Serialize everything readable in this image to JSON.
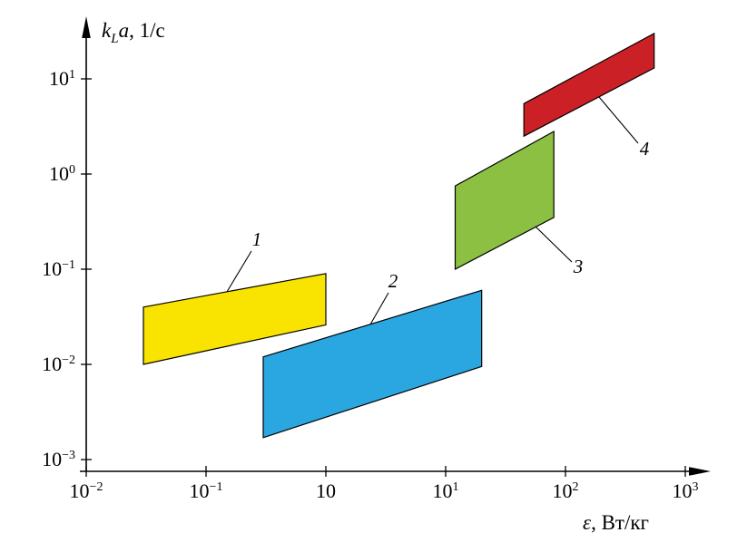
{
  "figure": {
    "y_axis_title": {
      "k": "k",
      "sub": "L",
      "a": "a",
      "rest": ", 1/с"
    },
    "x_axis_title": {
      "symbol": "ε",
      "rest": ", Вт/кг"
    }
  },
  "chart_data": {
    "type": "area",
    "title": "",
    "xlabel": "ε, Вт/кг",
    "ylabel": "kLa, 1/с",
    "grid": false,
    "legend": false,
    "x_axis": {
      "scale": "log",
      "log_min": -2,
      "log_max": 3,
      "min": 0.01,
      "max": 1000,
      "ticks": [
        {
          "value": 0.01,
          "base": "10",
          "exp": "−2"
        },
        {
          "value": 0.1,
          "base": "10",
          "exp": "−1"
        },
        {
          "value": 1,
          "base": "10",
          "exp": ""
        },
        {
          "value": 10,
          "base": "10",
          "exp": "1"
        },
        {
          "value": 100,
          "base": "10",
          "exp": "2"
        },
        {
          "value": 1000,
          "base": "10",
          "exp": "3"
        }
      ]
    },
    "y_axis": {
      "scale": "log",
      "log_min": -3,
      "log_max": 1,
      "min": 0.001,
      "max": 10,
      "ticks": [
        {
          "value": 10,
          "base": "10",
          "exp": "1"
        },
        {
          "value": 1,
          "base": "10",
          "exp": "0"
        },
        {
          "value": 0.1,
          "base": "10",
          "exp": "−1"
        },
        {
          "value": 0.01,
          "base": "10",
          "exp": "−2"
        },
        {
          "value": 0.001,
          "base": "10",
          "exp": "−3"
        }
      ]
    },
    "regions": [
      {
        "label": "1",
        "color": "#f9e300",
        "corners": [
          [
            0.03,
            0.04
          ],
          [
            1.0,
            0.09
          ],
          [
            1.0,
            0.026
          ],
          [
            0.03,
            0.01
          ]
        ]
      },
      {
        "label": "2",
        "color": "#2aa7e0",
        "corners": [
          [
            0.3,
            0.012
          ],
          [
            20,
            0.06
          ],
          [
            20,
            0.0095
          ],
          [
            0.3,
            0.0017
          ]
        ]
      },
      {
        "label": "3",
        "color": "#8cc043",
        "corners": [
          [
            12,
            0.75
          ],
          [
            80,
            2.8
          ],
          [
            80,
            0.35
          ],
          [
            12,
            0.1
          ]
        ]
      },
      {
        "label": "4",
        "color": "#cb2026",
        "corners": [
          [
            45,
            5.5
          ],
          [
            550,
            30
          ],
          [
            550,
            13
          ],
          [
            45,
            2.5
          ]
        ]
      }
    ]
  }
}
